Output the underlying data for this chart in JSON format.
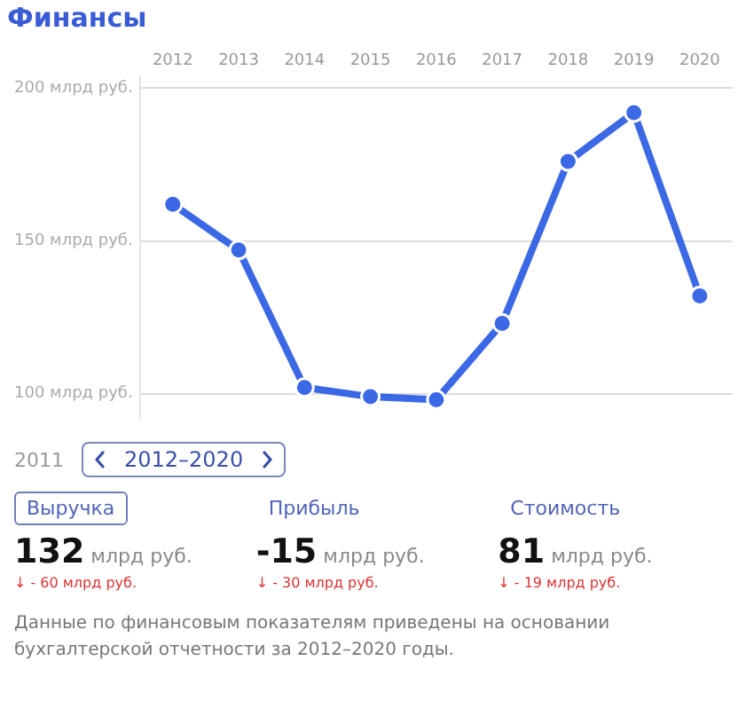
{
  "chart_data": [
    {
      "type": "line",
      "title": "Финансы",
      "categories": [
        "2012",
        "2013",
        "2014",
        "2015",
        "2016",
        "2017",
        "2018",
        "2019",
        "2020"
      ],
      "series": [
        {
          "color": "#3b68e4",
          "values": [
            162,
            147,
            102,
            99,
            98,
            123,
            176,
            192,
            132
          ]
        }
      ],
      "ylim": [
        92,
        204
      ],
      "yticks": [
        {
          "value": 100,
          "label": "100 млрд руб."
        },
        {
          "value": 150,
          "label": "150 млрд руб."
        },
        {
          "value": 200,
          "label": "200 млрд руб."
        }
      ],
      "grid": "y",
      "marker": "circle",
      "line_style": "solid",
      "legend": false
    },
    {
      "type": "other",
      "ylabel": "млрд руб.",
      "categories": [
        "Выручка",
        "Прибыль",
        "Стоимость"
      ],
      "values": [
        132,
        -15,
        81
      ],
      "data_labels": true,
      "annotations": [
        "2011",
        "2012–2020",
        {
          "text": "↓ - 60 млрд руб.",
          "x": "Выручка"
        },
        {
          "text": "↓ - 30 млрд руб.",
          "x": "Прибыль"
        },
        {
          "text": "↓ - 19 млрд руб.",
          "x": "Стоимость"
        },
        "Данные по финансовым показателям приведены на основании бухгалтерской отчетности за 2012–2020 годы."
      ]
    }
  ]
}
